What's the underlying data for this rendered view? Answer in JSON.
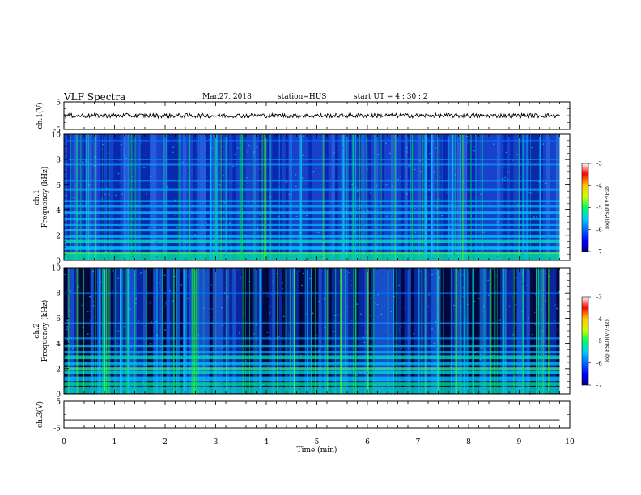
{
  "header": {
    "title": "VLF Spectra",
    "date": "Mar.27, 2018",
    "station": "station=HUS",
    "start": "start  UT  =   4 : 30 : 2"
  },
  "chart_data": [
    {
      "type": "line",
      "panel": "ch1-waveform",
      "ylabel": "ch.1(V)",
      "ylim": [
        -5,
        5
      ],
      "yticks": [
        "5",
        "-5"
      ],
      "series": [
        {
          "x": [
            0,
            9.8
          ],
          "values": [
            0,
            0
          ],
          "style": "noisy"
        }
      ]
    },
    {
      "type": "heatmap",
      "panel": "ch1-spectrogram",
      "ylabel": "ch.1",
      "ylabel2": "Frequency (kHz)",
      "ylim": [
        0,
        10
      ],
      "yticks": [
        "0",
        "2",
        "4",
        "6",
        "8",
        "10"
      ],
      "colorbar": {
        "label": "log(PSD)(V²/Hz)",
        "ticks": [
          "-3",
          "-4",
          "-5",
          "-6",
          "-7"
        ],
        "range": [
          -7,
          -3
        ]
      }
    },
    {
      "type": "heatmap",
      "panel": "ch2-spectrogram",
      "ylabel": "ch.2",
      "ylabel2": "Frequency (kHz)",
      "ylim": [
        0,
        10
      ],
      "yticks": [
        "0",
        "2",
        "4",
        "6",
        "8",
        "10"
      ],
      "colorbar": {
        "label": "log(PSD)(V²/Hz)",
        "ticks": [
          "-3",
          "-4",
          "-5",
          "-6",
          "-7"
        ],
        "range": [
          -7,
          -3
        ]
      }
    },
    {
      "type": "line",
      "panel": "ch3-waveform",
      "ylabel": "ch.3(V)",
      "ylim": [
        -5,
        5
      ],
      "yticks": [
        "5",
        "-5"
      ],
      "series": [
        {
          "x": [
            0,
            9.8
          ],
          "values": [
            -2,
            -2
          ]
        }
      ]
    }
  ],
  "xaxis": {
    "label": "Time  (min)",
    "range": [
      0,
      10
    ],
    "ticks": [
      "0",
      "1",
      "2",
      "3",
      "4",
      "5",
      "6",
      "7",
      "8",
      "9",
      "10"
    ]
  }
}
